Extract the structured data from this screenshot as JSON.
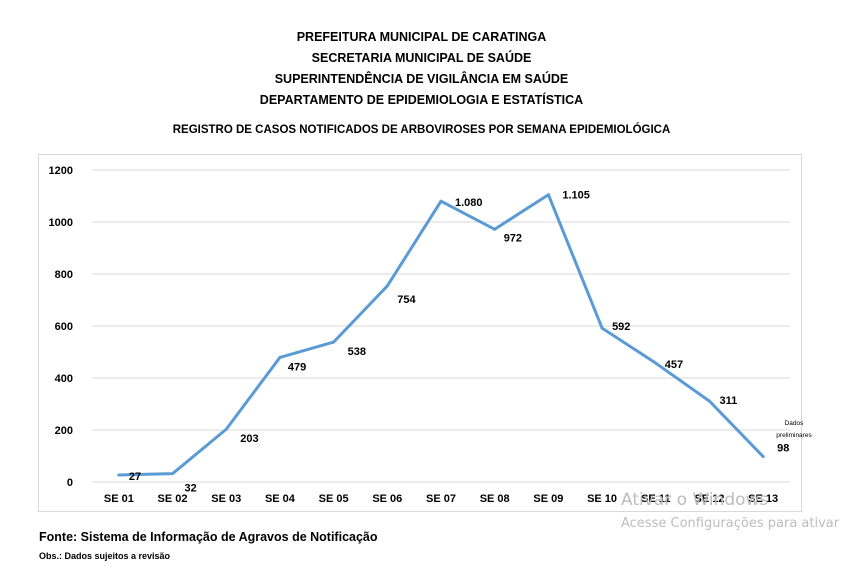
{
  "header": {
    "line1": "PREFEITURA MUNICIPAL DE CARATINGA",
    "line2": "SECRETARIA MUNICIPAL DE SAÚDE",
    "line3": "SUPERINTENDÊNCIA DE VIGILÂNCIA EM SAÚDE",
    "line4": "DEPARTAMENTO DE EPIDEMIOLOGIA E ESTATÍSTICA"
  },
  "chart_data": {
    "type": "line",
    "title": "REGISTRO DE CASOS NOTIFICADOS DE ARBOVIROSES POR SEMANA EPIDEMIOLÓGICA",
    "categories": [
      "SE 01",
      "SE 02",
      "SE 03",
      "SE 04",
      "SE 05",
      "SE 06",
      "SE 07",
      "SE 08",
      "SE 09",
      "SE 10",
      "SE 11",
      "SE 12",
      "SE 13"
    ],
    "values": [
      27,
      32,
      203,
      479,
      538,
      754,
      1080,
      972,
      1105,
      592,
      457,
      311,
      98
    ],
    "data_labels": [
      "27",
      "32",
      "203",
      "479",
      "538",
      "754",
      "1.080",
      "972",
      "1.105",
      "592",
      "457",
      "311",
      "98"
    ],
    "y_ticks": [
      0,
      200,
      400,
      600,
      800,
      1000,
      1200
    ],
    "ylim": [
      0,
      1200
    ],
    "grid": true,
    "line_color": "#5b9bd5",
    "annotation": {
      "line1": "Dados",
      "line2": "preliminares"
    }
  },
  "footer": {
    "source": "Fonte: Sistema de Informação de Agravos de Notificação",
    "obs": "Obs.: Dados sujeitos a revisão"
  },
  "watermark": {
    "line1": "Ativar o Windows",
    "line2": "Acesse Configurações para ativar"
  }
}
